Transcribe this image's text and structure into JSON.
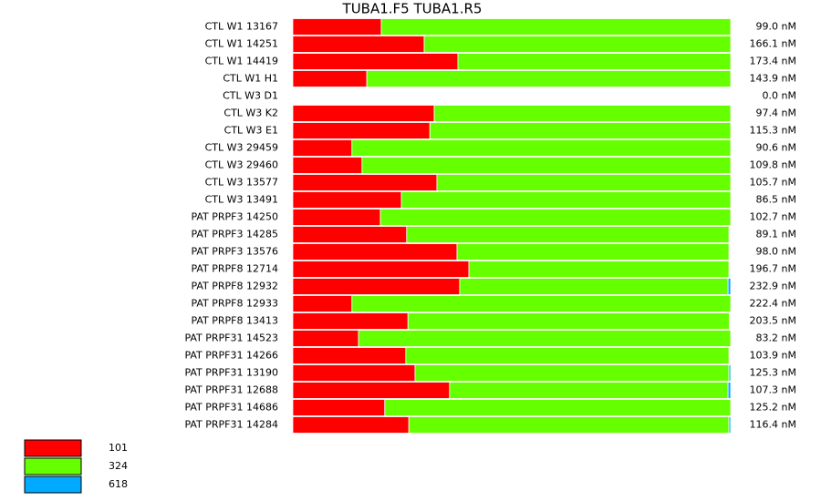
{
  "chart_data": {
    "type": "stacked-bar-horizontal",
    "title": "TUBA1.F5  TUBA1.R5",
    "categories": [
      "CTL W1 13167",
      "CTL W1 14251",
      "CTL W1 14419",
      "CTL W1 H1",
      "CTL W3 D1",
      "CTL W3 K2",
      "CTL W3 E1",
      "CTL W3 29459",
      "CTL W3 29460",
      "CTL W3 13577",
      "CTL W3 13491",
      "PAT PRPF3 14250",
      "PAT PRPF3 14285",
      "PAT PRPF3 13576",
      "PAT PRPF8 12714",
      "PAT PRPF8 12932",
      "PAT PRPF8 12933",
      "PAT PRPF8 13413",
      "PAT PRPF31 14523",
      "PAT PRPF31 14266",
      "PAT PRPF31 13190",
      "PAT PRPF31 12688",
      "PAT PRPF31 14686",
      "PAT PRPF31 14284"
    ],
    "row_totals": [
      "99.0 nM",
      "166.1 nM",
      "173.4 nM",
      "143.9 nM",
      "0.0 nM",
      "97.4 nM",
      "115.3 nM",
      "90.6 nM",
      "109.8 nM",
      "105.7 nM",
      "86.5 nM",
      "102.7 nM",
      "89.1 nM",
      "98.0 nM",
      "196.7 nM",
      "232.9 nM",
      "222.4 nM",
      "203.5 nM",
      "83.2 nM",
      "103.9 nM",
      "125.3 nM",
      "107.3 nM",
      "125.2 nM",
      "116.4 nM"
    ],
    "xlim": [
      0,
      100
    ],
    "series": [
      {
        "name": "101",
        "color": "#ff0000",
        "values": [
          20.2,
          30.0,
          37.7,
          16.9,
          0,
          32.3,
          31.3,
          13.5,
          15.8,
          32.9,
          24.8,
          20.0,
          26.0,
          37.5,
          40.2,
          38.1,
          13.5,
          26.3,
          15.0,
          25.8,
          27.9,
          35.8,
          21.0,
          26.5
        ]
      },
      {
        "name": "324",
        "color": "#66ff00",
        "values": [
          79.8,
          70.0,
          62.3,
          83.1,
          0,
          67.7,
          68.7,
          86.5,
          84.2,
          67.1,
          75.2,
          80.0,
          73.6,
          62.1,
          59.4,
          61.3,
          86.5,
          73.4,
          85.0,
          73.8,
          71.7,
          63.6,
          79.0,
          73.1
        ]
      },
      {
        "name": "618",
        "color": "#00aaff",
        "values": [
          0,
          0,
          0,
          0,
          0,
          0,
          0,
          0,
          0,
          0,
          0,
          0,
          0,
          0,
          0,
          0.6,
          0,
          0,
          0,
          0,
          0.4,
          0.6,
          0,
          0.4
        ]
      }
    ]
  }
}
